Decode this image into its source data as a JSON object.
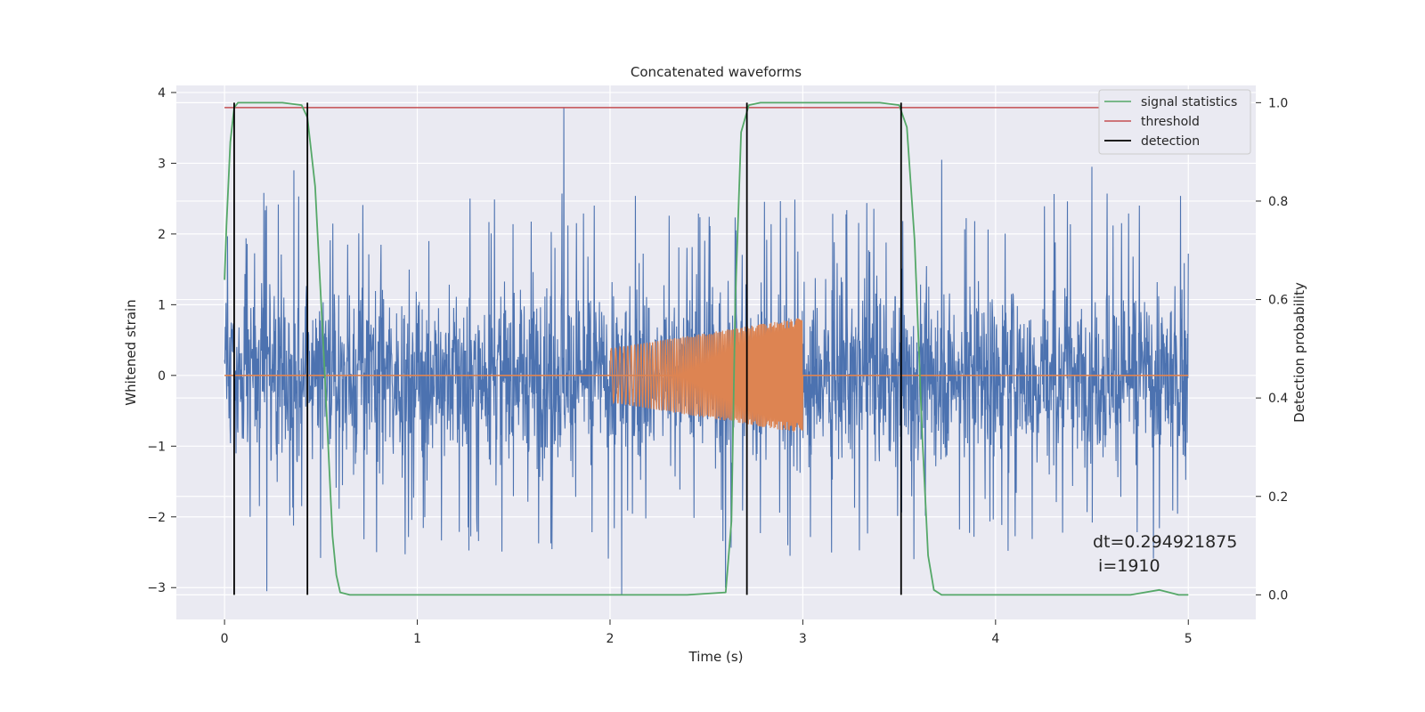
{
  "chart_data": {
    "type": "line",
    "title": "Concatenated waveforms",
    "xlabel": "Time (s)",
    "ylabel": "Whitened strain",
    "y2label": "Detection probability",
    "xlim": [
      -0.25,
      5.35
    ],
    "ylim": [
      -3.45,
      4.1
    ],
    "y2lim": [
      -0.05,
      1.035
    ],
    "xticks": [
      0,
      1,
      2,
      3,
      4,
      5
    ],
    "yticks": [
      -3,
      -2,
      -1,
      0,
      1,
      2,
      3,
      4
    ],
    "y2ticks": [
      0.0,
      0.2,
      0.4,
      0.6,
      0.8,
      1.0
    ],
    "grid": true,
    "legend_position": "top-right",
    "colors": {
      "background": "#eaeaf2",
      "strain": "#4c72b0",
      "injection": "#dd8452",
      "signal_statistics": "#55a868",
      "threshold": "#c44e52",
      "detection": "#000000",
      "grid": "#ffffff"
    },
    "series": [
      {
        "name": "strain",
        "axis": "left",
        "description_note": "",
        "t_range": [
          0,
          5
        ],
        "envelope_max": 3.78,
        "envelope_min": -3.1,
        "spikes": [
          {
            "x": 1.76,
            "y": 3.78
          },
          {
            "x": 0.36,
            "y": 2.9
          },
          {
            "x": 2.06,
            "y": -3.1
          },
          {
            "x": 0.22,
            "y": -3.05
          },
          {
            "x": 2.6,
            "y": -3.0
          },
          {
            "x": 4.5,
            "y": 2.95
          },
          {
            "x": 3.72,
            "y": 3.05
          }
        ]
      },
      {
        "name": "injection",
        "axis": "left",
        "t_range": [
          2,
          3
        ],
        "amp_start": 0.38,
        "amp_end": 0.82
      },
      {
        "name": "signal statistics",
        "axis": "right",
        "x": [
          0,
          0.01,
          0.03,
          0.05,
          0.07,
          0.1,
          0.3,
          0.4,
          0.43,
          0.47,
          0.52,
          0.56,
          0.58,
          0.6,
          0.65,
          2.4,
          2.6,
          2.63,
          2.65,
          2.68,
          2.72,
          2.78,
          3.4,
          3.5,
          3.54,
          3.58,
          3.62,
          3.65,
          3.68,
          3.72,
          4.7,
          4.85,
          4.95,
          5.0
        ],
        "y": [
          0.64,
          0.75,
          0.92,
          0.99,
          1.0,
          1.0,
          1.0,
          0.995,
          0.97,
          0.83,
          0.45,
          0.12,
          0.04,
          0.005,
          0.0,
          0.0,
          0.005,
          0.15,
          0.6,
          0.94,
          0.995,
          1.0,
          1.0,
          0.995,
          0.95,
          0.72,
          0.32,
          0.08,
          0.01,
          0.0,
          0.0,
          0.01,
          0.0,
          0.0
        ]
      },
      {
        "name": "threshold",
        "axis": "right",
        "x": [
          0,
          5
        ],
        "y": [
          0.99,
          0.99
        ]
      },
      {
        "name": "detection",
        "axis": "right",
        "x_positions": [
          0.05,
          0.43,
          2.71,
          3.51
        ],
        "y_range": [
          0.0,
          1.0
        ]
      }
    ],
    "legend": [
      "signal statistics",
      "threshold",
      "detection"
    ],
    "annotations": [
      "dt=0.294921875",
      " i=1910"
    ]
  }
}
